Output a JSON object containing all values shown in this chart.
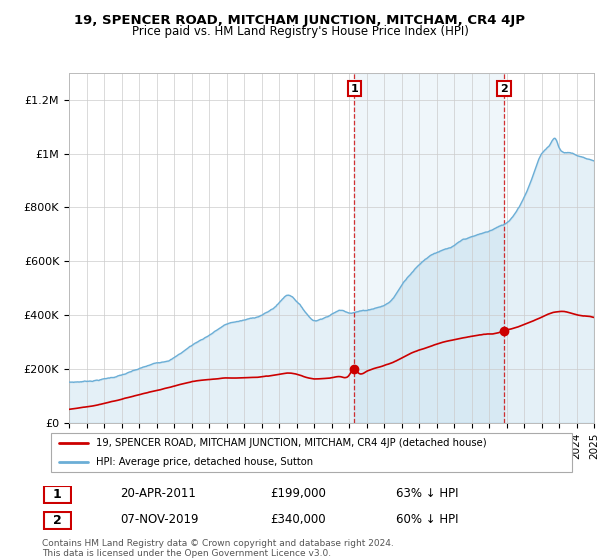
{
  "title": "19, SPENCER ROAD, MITCHAM JUNCTION, MITCHAM, CR4 4JP",
  "subtitle": "Price paid vs. HM Land Registry's House Price Index (HPI)",
  "hpi_color": "#6baed6",
  "price_color": "#cc0000",
  "dashed_color": "#cc0000",
  "background_color": "#ffffff",
  "grid_color": "#cccccc",
  "ylim": [
    0,
    1300000
  ],
  "yticks": [
    0,
    200000,
    400000,
    600000,
    800000,
    1000000,
    1200000
  ],
  "ytick_labels": [
    "£0",
    "£200K",
    "£400K",
    "£600K",
    "£800K",
    "£1M",
    "£1.2M"
  ],
  "sale1_year": 2011.3,
  "sale1_price": 199000,
  "sale2_year": 2019.85,
  "sale2_price": 340000,
  "legend_entries": [
    "19, SPENCER ROAD, MITCHAM JUNCTION, MITCHAM, CR4 4JP (detached house)",
    "HPI: Average price, detached house, Sutton"
  ],
  "annotation1_label": "1",
  "annotation2_label": "2",
  "table_row1": [
    "1",
    "20-APR-2011",
    "£199,000",
    "63% ↓ HPI"
  ],
  "table_row2": [
    "2",
    "07-NOV-2019",
    "£340,000",
    "60% ↓ HPI"
  ],
  "footnote": "Contains HM Land Registry data © Crown copyright and database right 2024.\nThis data is licensed under the Open Government Licence v3.0.",
  "xmin": 1995,
  "xmax": 2025,
  "hpi_keypoints": [
    [
      1995.0,
      150000
    ],
    [
      1996.0,
      155000
    ],
    [
      1997.0,
      165000
    ],
    [
      1998.0,
      180000
    ],
    [
      1999.0,
      200000
    ],
    [
      2000.0,
      220000
    ],
    [
      2001.0,
      245000
    ],
    [
      2002.0,
      290000
    ],
    [
      2003.0,
      330000
    ],
    [
      2004.0,
      370000
    ],
    [
      2005.0,
      385000
    ],
    [
      2006.0,
      405000
    ],
    [
      2007.0,
      450000
    ],
    [
      2007.5,
      480000
    ],
    [
      2008.0,
      460000
    ],
    [
      2008.5,
      420000
    ],
    [
      2009.0,
      390000
    ],
    [
      2009.5,
      400000
    ],
    [
      2010.0,
      415000
    ],
    [
      2010.5,
      430000
    ],
    [
      2011.0,
      425000
    ],
    [
      2011.5,
      430000
    ],
    [
      2012.0,
      435000
    ],
    [
      2012.5,
      445000
    ],
    [
      2013.0,
      455000
    ],
    [
      2013.5,
      480000
    ],
    [
      2014.0,
      530000
    ],
    [
      2014.5,
      575000
    ],
    [
      2015.0,
      610000
    ],
    [
      2015.5,
      640000
    ],
    [
      2016.0,
      660000
    ],
    [
      2016.5,
      670000
    ],
    [
      2017.0,
      680000
    ],
    [
      2017.5,
      700000
    ],
    [
      2018.0,
      710000
    ],
    [
      2018.5,
      720000
    ],
    [
      2019.0,
      730000
    ],
    [
      2019.5,
      745000
    ],
    [
      2020.0,
      760000
    ],
    [
      2020.5,
      800000
    ],
    [
      2021.0,
      860000
    ],
    [
      2021.5,
      940000
    ],
    [
      2022.0,
      1020000
    ],
    [
      2022.5,
      1060000
    ],
    [
      2022.8,
      1080000
    ],
    [
      2023.0,
      1050000
    ],
    [
      2023.5,
      1030000
    ],
    [
      2024.0,
      1020000
    ],
    [
      2024.5,
      1010000
    ],
    [
      2025.0,
      1000000
    ]
  ],
  "price_keypoints": [
    [
      1995.0,
      50000
    ],
    [
      1996.0,
      60000
    ],
    [
      1997.0,
      72000
    ],
    [
      1998.0,
      88000
    ],
    [
      1999.0,
      105000
    ],
    [
      2000.0,
      120000
    ],
    [
      2001.0,
      135000
    ],
    [
      2002.0,
      150000
    ],
    [
      2003.0,
      158000
    ],
    [
      2004.0,
      163000
    ],
    [
      2005.0,
      165000
    ],
    [
      2006.0,
      170000
    ],
    [
      2007.0,
      178000
    ],
    [
      2007.5,
      183000
    ],
    [
      2008.0,
      178000
    ],
    [
      2008.5,
      168000
    ],
    [
      2009.0,
      162000
    ],
    [
      2009.5,
      163000
    ],
    [
      2010.0,
      166000
    ],
    [
      2010.5,
      170000
    ],
    [
      2011.0,
      175000
    ],
    [
      2011.3,
      199000
    ],
    [
      2011.5,
      185000
    ],
    [
      2012.0,
      188000
    ],
    [
      2012.5,
      200000
    ],
    [
      2013.0,
      210000
    ],
    [
      2013.5,
      222000
    ],
    [
      2014.0,
      238000
    ],
    [
      2014.5,
      255000
    ],
    [
      2015.0,
      268000
    ],
    [
      2015.5,
      278000
    ],
    [
      2016.0,
      290000
    ],
    [
      2016.5,
      300000
    ],
    [
      2017.0,
      308000
    ],
    [
      2017.5,
      315000
    ],
    [
      2018.0,
      320000
    ],
    [
      2018.5,
      325000
    ],
    [
      2019.0,
      328000
    ],
    [
      2019.5,
      332000
    ],
    [
      2019.85,
      340000
    ],
    [
      2020.0,
      342000
    ],
    [
      2020.5,
      350000
    ],
    [
      2021.0,
      362000
    ],
    [
      2021.5,
      375000
    ],
    [
      2022.0,
      390000
    ],
    [
      2022.5,
      405000
    ],
    [
      2023.0,
      412000
    ],
    [
      2023.5,
      410000
    ],
    [
      2024.0,
      400000
    ],
    [
      2024.5,
      395000
    ],
    [
      2025.0,
      390000
    ]
  ]
}
